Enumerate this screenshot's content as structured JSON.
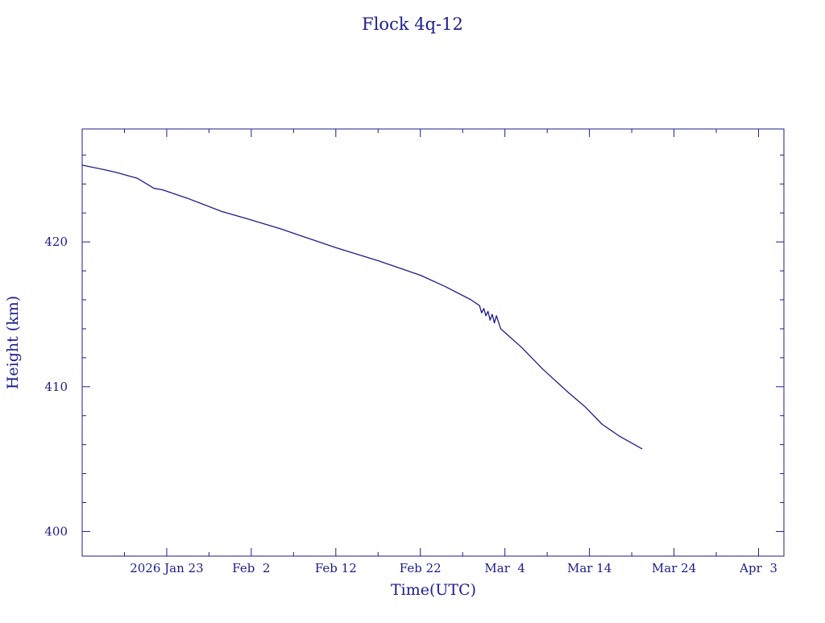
{
  "chart_data": {
    "type": "line",
    "title": "Flock 4q-12",
    "xlabel": "Time(UTC)",
    "ylabel": "Height (km)",
    "color": "#1c1c8c",
    "xlim": [
      "2026-01-13",
      "2026-04-06"
    ],
    "ylim": [
      398.3,
      427.8
    ],
    "x_ticks": [
      {
        "date": "2026-01-23",
        "label": "2026 Jan 23"
      },
      {
        "date": "2026-02-02",
        "label": "Feb  2"
      },
      {
        "date": "2026-02-12",
        "label": "Feb 12"
      },
      {
        "date": "2026-02-22",
        "label": "Feb 22"
      },
      {
        "date": "2026-03-04",
        "label": "Mar  4"
      },
      {
        "date": "2026-03-14",
        "label": "Mar 14"
      },
      {
        "date": "2026-03-24",
        "label": "Mar 24"
      },
      {
        "date": "2026-04-03",
        "label": "Apr  3"
      }
    ],
    "y_ticks": [
      {
        "value": 400,
        "label": "400"
      },
      {
        "value": 410,
        "label": "410"
      },
      {
        "value": 420,
        "label": "420"
      }
    ],
    "grid": false,
    "series": [
      {
        "points": [
          [
            "2026-01-13 00:00",
            425.3
          ],
          [
            "2026-01-15 12:00",
            425.0
          ],
          [
            "2026-01-17 00:00",
            424.8
          ],
          [
            "2026-01-19 12:00",
            424.4
          ],
          [
            "2026-01-21 12:00",
            423.7
          ],
          [
            "2026-01-22 12:00",
            423.6
          ],
          [
            "2026-01-25 12:00",
            423.0
          ],
          [
            "2026-01-29 12:00",
            422.1
          ],
          [
            "2026-02-01 12:00",
            421.6
          ],
          [
            "2026-02-05 12:00",
            420.9
          ],
          [
            "2026-02-07 12:00",
            420.5
          ],
          [
            "2026-02-12 00:00",
            419.6
          ],
          [
            "2026-02-17 00:00",
            418.7
          ],
          [
            "2026-02-22 00:00",
            417.7
          ],
          [
            "2026-02-25 00:00",
            416.9
          ],
          [
            "2026-02-28 00:00",
            416.0
          ],
          [
            "2026-03-01 00:00",
            415.6
          ],
          [
            "2026-03-01 06:00",
            415.1
          ],
          [
            "2026-03-01 12:00",
            415.4
          ],
          [
            "2026-03-01 18:00",
            414.9
          ],
          [
            "2026-03-02 00:00",
            415.2
          ],
          [
            "2026-03-02 06:00",
            414.6
          ],
          [
            "2026-03-02 12:00",
            415.0
          ],
          [
            "2026-03-02 18:00",
            414.4
          ],
          [
            "2026-03-03 00:00",
            414.9
          ],
          [
            "2026-03-03 12:00",
            414.0
          ],
          [
            "2026-03-06 00:00",
            412.7
          ],
          [
            "2026-03-08 12:00",
            411.2
          ],
          [
            "2026-03-11 12:00",
            409.6
          ],
          [
            "2026-03-13 12:00",
            408.6
          ],
          [
            "2026-03-15 12:00",
            407.4
          ],
          [
            "2026-03-17 12:00",
            406.6
          ],
          [
            "2026-03-20 06:00",
            405.7
          ]
        ]
      }
    ]
  }
}
